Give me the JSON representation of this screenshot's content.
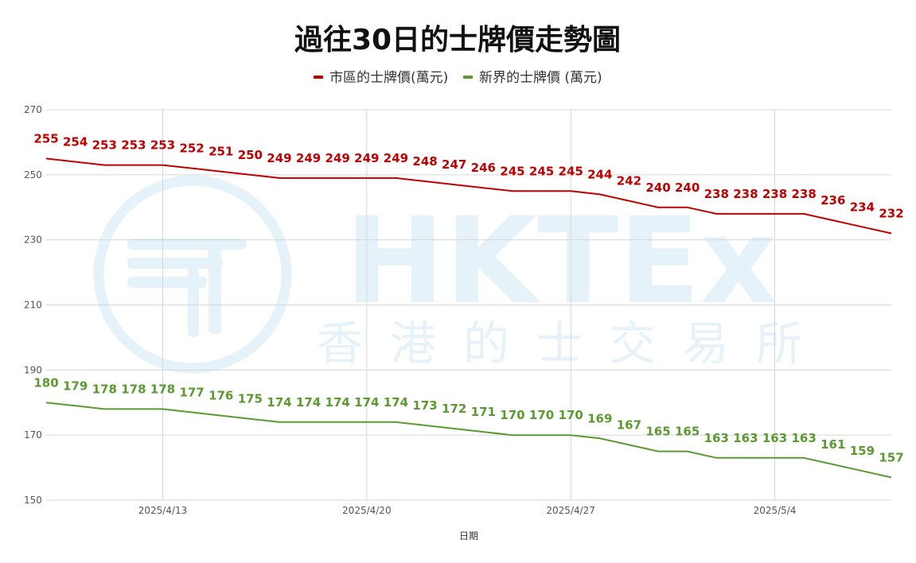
{
  "chart_data": {
    "type": "line",
    "title": "過往30日的士牌價走勢圖",
    "xlabel": "日期",
    "ylabel": "",
    "ylim": [
      150,
      270
    ],
    "yticks": [
      150,
      170,
      190,
      210,
      230,
      250,
      270
    ],
    "x_tick_labels": [
      {
        "index": 4,
        "label": "2025/4/13"
      },
      {
        "index": 11,
        "label": "2025/4/20"
      },
      {
        "index": 18,
        "label": "2025/4/27"
      },
      {
        "index": 25,
        "label": "2025/5/4"
      }
    ],
    "point_count": 30,
    "grid": true,
    "legend_position": "top-center",
    "series": [
      {
        "name": "市區的士牌價(萬元)",
        "color": "#c00000",
        "values": [
          255,
          254,
          253,
          253,
          253,
          252,
          251,
          250,
          249,
          249,
          249,
          249,
          249,
          248,
          247,
          246,
          245,
          245,
          245,
          244,
          242,
          240,
          240,
          238,
          238,
          238,
          238,
          236,
          234,
          232
        ]
      },
      {
        "name": "新界的士牌價 (萬元)",
        "color": "#5a9a30",
        "values": [
          180,
          179,
          178,
          178,
          178,
          177,
          176,
          175,
          174,
          174,
          174,
          174,
          174,
          173,
          172,
          171,
          170,
          170,
          170,
          169,
          167,
          165,
          165,
          163,
          163,
          163,
          163,
          161,
          159,
          157
        ]
      }
    ]
  },
  "watermark": {
    "logo_text": "HKTEx",
    "subtitle": "香港的士交易所",
    "color": "#e6f2fa"
  }
}
